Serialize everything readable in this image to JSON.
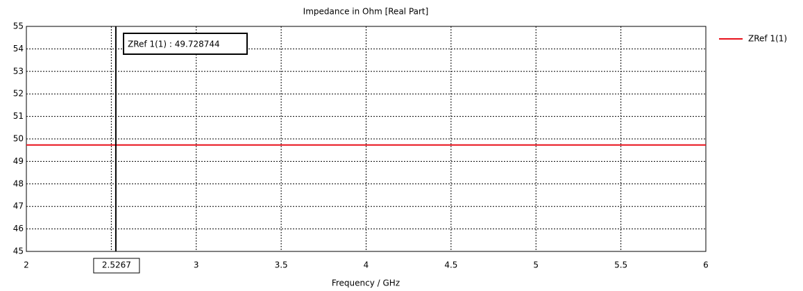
{
  "chart_data": {
    "type": "line",
    "title": "Impedance in Ohm [Real Part]",
    "x_label": "Frequency / GHz",
    "x": [
      2,
      6
    ],
    "series": [
      {
        "name": "ZRef 1(1)",
        "color": "#e8101a",
        "values": [
          49.728744,
          49.728744
        ]
      }
    ],
    "xlim": [
      2,
      6
    ],
    "xticks": [
      2,
      2.5,
      3,
      3.5,
      4,
      4.5,
      5,
      5.5,
      6
    ],
    "ylim": [
      45,
      55
    ],
    "yticks": [
      45,
      46,
      47,
      48,
      49,
      50,
      51,
      52,
      53,
      54,
      55
    ],
    "grid": true,
    "legend": "right",
    "marker": {
      "x": 2.5267,
      "label": "ZRef 1(1) : 49.728744"
    }
  }
}
